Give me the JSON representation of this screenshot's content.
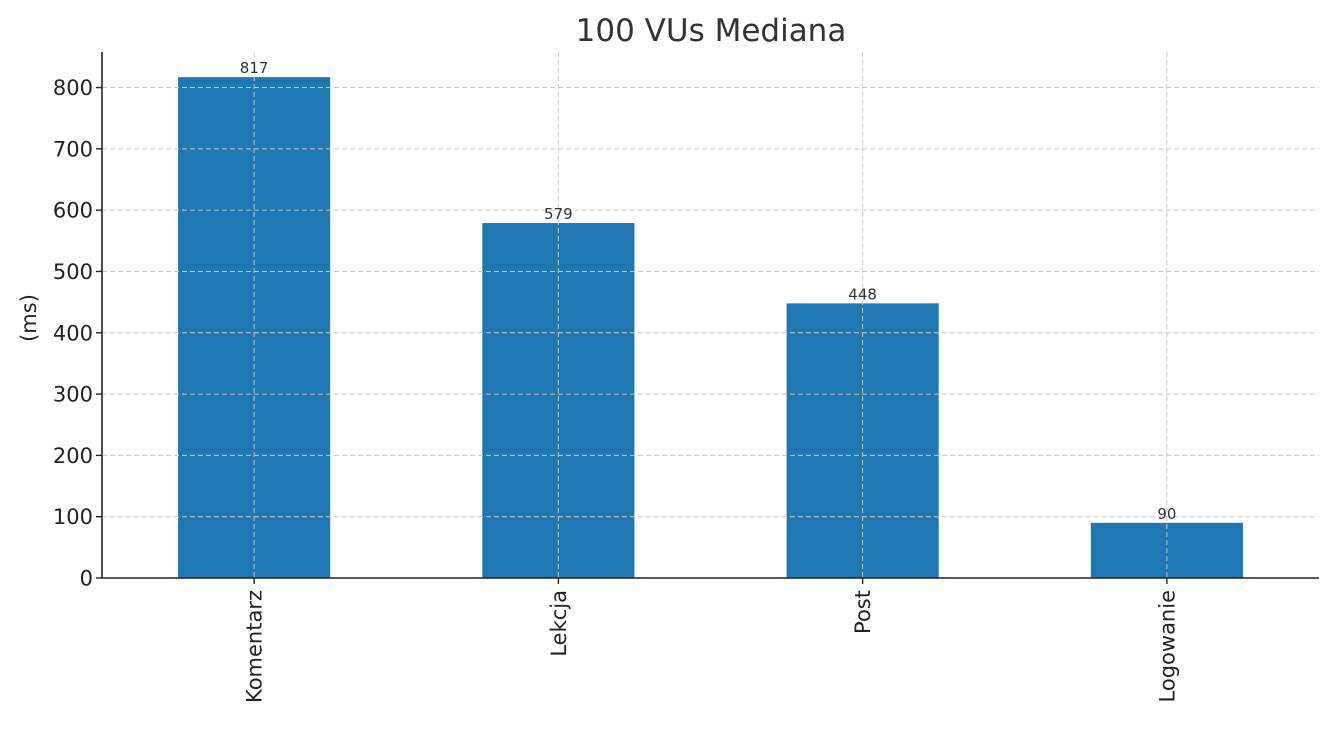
{
  "chart_data": {
    "type": "bar",
    "title": "100 VUs Mediana",
    "xlabel": "",
    "ylabel": "(ms)",
    "categories": [
      "Komentarz",
      "Lekcja",
      "Post",
      "Logowanie"
    ],
    "values": [
      817,
      579,
      448,
      90
    ],
    "data_labels": [
      "817",
      "579",
      "448",
      "90"
    ],
    "y_ticks": [
      0,
      100,
      200,
      300,
      400,
      500,
      600,
      700,
      800
    ],
    "y_tick_labels": [
      "0",
      "100",
      "200",
      "300",
      "400",
      "500",
      "600",
      "700",
      "800"
    ],
    "ylim": [
      0,
      858
    ],
    "grid": true,
    "legend": "none",
    "bar_color": "#1f77b4"
  }
}
